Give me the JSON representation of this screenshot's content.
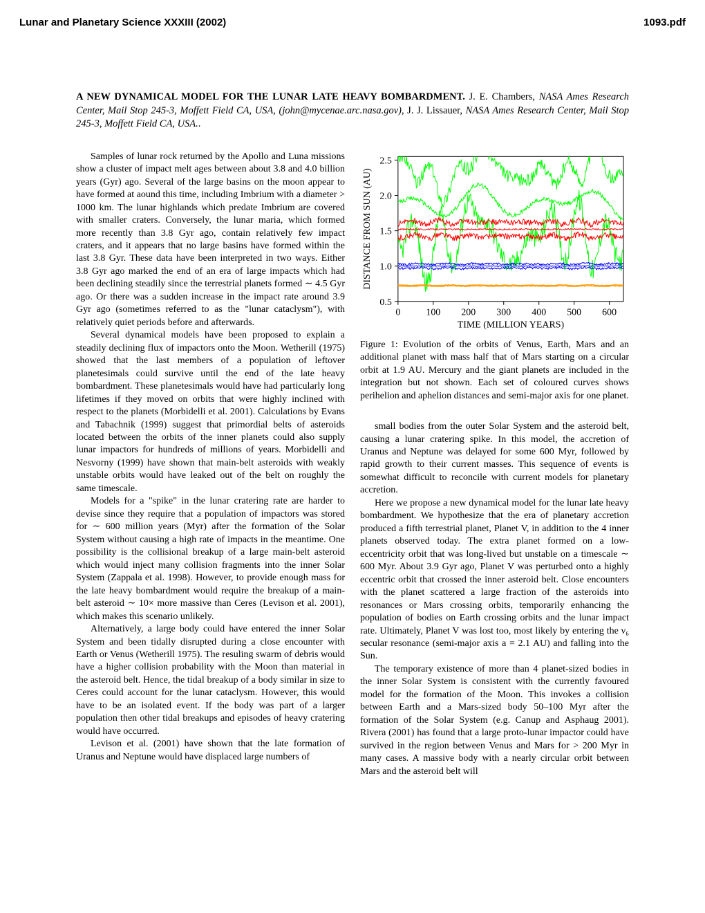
{
  "header": {
    "left": "Lunar and Planetary Science XXXIII (2002)",
    "right": "1093.pdf"
  },
  "title": "A NEW DYNAMICAL MODEL FOR THE LUNAR LATE HEAVY BOMBARDMENT.",
  "authors_line": " J. E. Chambers, ",
  "affil1": "NASA Ames Research Center, Mail Stop 245-3, Moffett Field CA, USA, (john@mycenae.arc.nasa.gov)",
  "authors_line2": ", J. J. Lissauer, ",
  "affil2": "NASA Ames Research Center, Mail Stop 245-3, Moffett Field CA, USA.",
  "period": ".",
  "left_col": {
    "p1": "Samples of lunar rock returned by the Apollo and Luna missions show a cluster of impact melt ages between about 3.8 and 4.0 billion years (Gyr) ago. Several of the large basins on the moon appear to have formed at aound this time, including Imbrium with a diameter > 1000 km. The lunar highlands which predate Imbrium are covered with smaller craters. Conversely, the lunar maria, which formed more recently than 3.8 Gyr ago, contain relatively few impact craters, and it appears that no large basins have formed within the last 3.8 Gyr. These data have been interpreted in two ways. Either 3.8 Gyr ago marked the end of an era of large impacts which had been declining steadily since the terrestrial planets formed ∼ 4.5 Gyr ago. Or there was a sudden increase in the impact rate around 3.9 Gyr ago (sometimes referred to as the \"lunar cataclysm\"), with relatively quiet periods before and afterwards.",
    "p2": "Several dynamical models have been proposed to explain a steadily declining flux of impactors onto the Moon. Wetherill (1975) showed that the last members of a population of leftover planetesimals could survive until the end of the late heavy bombardment. These planetesimals would have had particularly long lifetimes if they moved on orbits that were highly inclined with respect to the planets (Morbidelli et al. 2001). Calculations by Evans and Tabachnik (1999) suggest that primordial belts of asteroids located between the orbits of the inner planets could also supply lunar impactors for hundreds of millions of years. Morbidelli and Nesvorny (1999) have shown that main-belt asteroids with weakly unstable orbits would have leaked out of the belt on roughly the same timescale.",
    "p3": "Models for a \"spike\" in the lunar cratering rate are harder to devise since they require that a population of impactors was stored for ∼ 600 million years (Myr) after the formation of the Solar System without causing a high rate of impacts in the meantime. One possibility is the collisional breakup of a large main-belt asteroid which would inject many collision fragments into the inner Solar System (Zappala et al. 1998). However, to provide enough mass for the late heavy bombardment would require the breakup of a main-belt asteroid ∼ 10× more massive than Ceres (Levison et al. 2001), which makes this scenario unlikely.",
    "p4": "Alternatively, a large body could have entered the inner Solar System and been tidally disrupted during a close encounter with Earth or Venus (Wetherill 1975). The resuling swarm of debris would have a higher collision probability with the Moon than material in the asteroid belt. Hence, the tidal breakup of a body similar in size to Ceres could account for the lunar cataclysm. However, this would have to be an isolated event. If the body was part of a larger population then other tidal breakups and episodes of heavy cratering would have occurred.",
    "p5": "Levison et al. (2001) have shown that the late formation of Uranus and Neptune would have displaced large numbers of"
  },
  "figure": {
    "type": "line",
    "xlabel": "TIME (MILLION YEARS)",
    "ylabel": "DISTANCE FROM SUN (AU)",
    "xlim": [
      0,
      640
    ],
    "ylim": [
      0.5,
      2.55
    ],
    "xticks": [
      0,
      100,
      200,
      300,
      400,
      500,
      600
    ],
    "yticks": [
      0.5,
      1.0,
      1.5,
      2.0,
      2.5
    ],
    "tick_fontsize": 14,
    "label_fontsize": 14,
    "background_color": "#ffffff",
    "frame_color": "#000000",
    "series": [
      {
        "name": "planet5_peri",
        "color": "#00ff00",
        "mean": 1.5,
        "amp": 0.45,
        "noise": 0.3
      },
      {
        "name": "planet5_sma",
        "color": "#00ff00",
        "mean": 1.9,
        "amp": 0.0,
        "noise": 0.06
      },
      {
        "name": "planet5_aphe",
        "color": "#00ff00",
        "mean": 2.3,
        "amp": 0.2,
        "noise": 0.18
      },
      {
        "name": "mars_peri",
        "color": "#ff0000",
        "mean": 1.42,
        "amp": 0.03,
        "noise": 0.08
      },
      {
        "name": "mars_sma",
        "color": "#ff0000",
        "mean": 1.52,
        "amp": 0.0,
        "noise": 0.02
      },
      {
        "name": "mars_aphe",
        "color": "#ff0000",
        "mean": 1.62,
        "amp": 0.03,
        "noise": 0.08
      },
      {
        "name": "earth_peri",
        "color": "#0000ff",
        "mean": 0.97,
        "amp": 0.01,
        "noise": 0.03
      },
      {
        "name": "earth_sma",
        "color": "#0000ff",
        "mean": 1.0,
        "amp": 0.0,
        "noise": 0.01
      },
      {
        "name": "earth_aphe",
        "color": "#0000ff",
        "mean": 1.03,
        "amp": 0.01,
        "noise": 0.03
      },
      {
        "name": "venus_peri",
        "color": "#ff9900",
        "mean": 0.715,
        "amp": 0.005,
        "noise": 0.01
      },
      {
        "name": "venus_sma",
        "color": "#ff9900",
        "mean": 0.723,
        "amp": 0.0,
        "noise": 0.005
      },
      {
        "name": "venus_aphe",
        "color": "#ff9900",
        "mean": 0.731,
        "amp": 0.005,
        "noise": 0.01
      }
    ],
    "caption": "Figure 1: Evolution of the orbits of Venus, Earth, Mars and an additional planet with mass half that of Mars starting on a circular orbit at 1.9 AU. Mercury and the giant planets are included in the integration but not shown. Each set of coloured curves shows perihelion and aphelion distances and semi-major axis for one planet."
  },
  "right_col": {
    "p1": "small bodies from the outer Solar System and the asteroid belt, causing a lunar cratering spike. In this model, the accretion of Uranus and Neptune was delayed for some 600 Myr, followed by rapid growth to their current masses. This sequence of events is somewhat difficult to reconcile with current models for planetary accretion.",
    "p2": "Here we propose a new dynamical model for the lunar late heavy bombardment. We hypothesize that the era of planetary accretion produced a fifth terrestrial planet, Planet V, in addition to the 4 inner planets observed today. The extra planet formed on a low-eccentricity orbit that was long-lived but unstable on a timescale ∼ 600 Myr. About 3.9 Gyr ago, Planet V was perturbed onto a highly eccentric orbit that crossed the inner asteroid belt. Close encounters with the planet scattered a large fraction of the asteroids into resonances or Mars crossing orbits, temporarily enhancing the population of bodies on Earth crossing orbits and the lunar impact rate. Ultimately, Planet V was lost too, most likely by entering the ν₆ secular resonance (semi-major axis a = 2.1 AU) and falling into the Sun.",
    "p3": "The temporary existence of more than 4 planet-sized bodies in the inner Solar System is consistent with the currently favoured model for the formation of the Moon. This invokes a collision between Earth and a Mars-sized body 50–100 Myr after the formation of the Solar System (e.g. Canup and Asphaug 2001). Rivera (2001) has found that a large proto-lunar impactor could have survived in the region between Venus and Mars for > 200 Myr in many cases. A massive body with a nearly circular orbit between Mars and the asteroid belt will"
  }
}
